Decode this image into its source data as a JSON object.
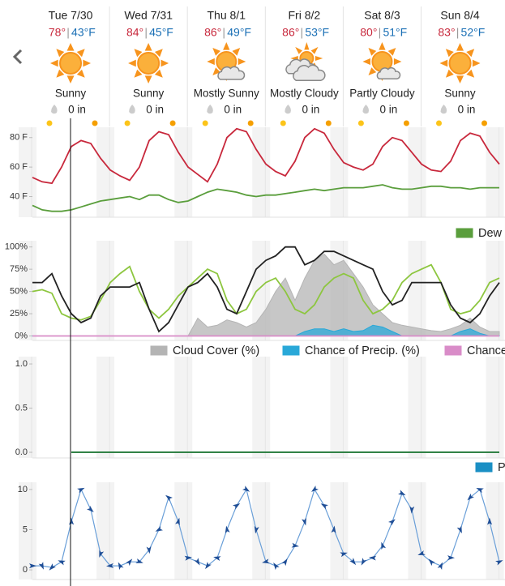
{
  "temp_separator": "|",
  "days": [
    {
      "day": "Tue 7/30",
      "high": "78°",
      "low": "43°F",
      "condition": "Sunny",
      "precip": "0 in",
      "icon": "sunny"
    },
    {
      "day": "Wed 7/31",
      "high": "84°",
      "low": "45°F",
      "condition": "Sunny",
      "precip": "0 in",
      "icon": "sunny"
    },
    {
      "day": "Thu 8/1",
      "high": "86°",
      "low": "49°F",
      "condition": "Mostly Sunny",
      "precip": "0 in",
      "icon": "mostly-sunny"
    },
    {
      "day": "Fri 8/2",
      "high": "86°",
      "low": "53°F",
      "condition": "Mostly Cloudy",
      "precip": "0 in",
      "icon": "mostly-cloudy"
    },
    {
      "day": "Sat 8/3",
      "high": "80°",
      "low": "51°F",
      "condition": "Partly Cloudy",
      "precip": "0 in",
      "icon": "partly-cloudy"
    },
    {
      "day": "Sun 8/4",
      "high": "83°",
      "low": "52°F",
      "condition": "Sunny",
      "precip": "0 in",
      "icon": "sunny"
    }
  ],
  "chart_data": [
    {
      "type": "line",
      "ylim": [
        26,
        87
      ],
      "yticks": [
        {
          "value": 40,
          "label": "40 F"
        },
        {
          "value": 60,
          "label": "60 F"
        },
        {
          "value": 80,
          "label": "80 F"
        }
      ],
      "legend": "bottom-right",
      "series": [
        {
          "color": "#c8283c",
          "style": "line",
          "values": [
            53,
            50,
            49,
            60,
            74,
            78,
            76,
            66,
            58,
            54,
            51,
            60,
            78,
            84,
            82,
            70,
            60,
            55,
            50,
            62,
            80,
            86,
            84,
            72,
            62,
            57,
            54,
            64,
            80,
            86,
            83,
            72,
            63,
            60,
            58,
            62,
            74,
            80,
            78,
            70,
            62,
            58,
            57,
            64,
            78,
            83,
            81,
            70,
            62
          ]
        },
        {
          "name": "Dew",
          "color": "#5a9e3c",
          "style": "line",
          "values": [
            34,
            31,
            30,
            30,
            31,
            33,
            35,
            37,
            38,
            39,
            40,
            38,
            41,
            41,
            38,
            36,
            37,
            40,
            43,
            45,
            44,
            43,
            41,
            40,
            41,
            41,
            42,
            43,
            44,
            45,
            44,
            45,
            46,
            46,
            46,
            47,
            48,
            46,
            45,
            45,
            46,
            47,
            47,
            46,
            46,
            45,
            46,
            46,
            46
          ]
        }
      ]
    },
    {
      "type": "line",
      "ylim": [
        -5,
        107
      ],
      "yticks": [
        {
          "value": 0,
          "label": "0%"
        },
        {
          "value": 25,
          "label": "25%"
        },
        {
          "value": 50,
          "label": "50%"
        },
        {
          "value": 75,
          "label": "75%"
        },
        {
          "value": 100,
          "label": "100%"
        }
      ],
      "legend": "bottom",
      "series": [
        {
          "name": "Cloud Cover (%)",
          "color": "#b4b4b4",
          "style": "area",
          "values": [
            0,
            0,
            0,
            0,
            0,
            0,
            0,
            0,
            0,
            0,
            0,
            0,
            0,
            0,
            0,
            0,
            0,
            20,
            10,
            12,
            18,
            15,
            10,
            15,
            30,
            50,
            65,
            40,
            65,
            85,
            92,
            80,
            85,
            70,
            55,
            35,
            25,
            15,
            12,
            10,
            8,
            6,
            5,
            8,
            12,
            20,
            10,
            5,
            5
          ]
        },
        {
          "name": "Chance of Precip. (%)",
          "color": "#29a8d8",
          "style": "area",
          "values": [
            0,
            0,
            0,
            0,
            0,
            0,
            0,
            0,
            0,
            0,
            0,
            0,
            0,
            0,
            0,
            0,
            0,
            0,
            0,
            0,
            0,
            0,
            0,
            0,
            0,
            0,
            0,
            0,
            5,
            8,
            8,
            5,
            8,
            5,
            6,
            12,
            10,
            5,
            0,
            0,
            0,
            0,
            0,
            0,
            5,
            8,
            3,
            0,
            0
          ]
        },
        {
          "name": "Chance",
          "color": "#d98cc8",
          "style": "line",
          "values": [
            0,
            0,
            0,
            0,
            0,
            0,
            0,
            0,
            0,
            0,
            0,
            0,
            0,
            0,
            0,
            0,
            0,
            0,
            0,
            0,
            0,
            0,
            0,
            0,
            0,
            0,
            0,
            0,
            0,
            0,
            0,
            0,
            0,
            0,
            0,
            0,
            0,
            0,
            0,
            0,
            0,
            0,
            0,
            0,
            0,
            0,
            0,
            0,
            0
          ]
        },
        {
          "color": "#8dc63f",
          "style": "line",
          "values": [
            50,
            52,
            48,
            25,
            20,
            18,
            22,
            40,
            60,
            70,
            78,
            50,
            30,
            20,
            30,
            45,
            55,
            65,
            75,
            70,
            40,
            25,
            30,
            50,
            60,
            65,
            50,
            30,
            25,
            35,
            55,
            65,
            70,
            65,
            40,
            25,
            30,
            40,
            60,
            70,
            75,
            80,
            60,
            30,
            25,
            28,
            40,
            60,
            65
          ]
        },
        {
          "color": "#222222",
          "style": "line",
          "values": [
            60,
            60,
            70,
            45,
            25,
            15,
            20,
            45,
            55,
            55,
            55,
            60,
            30,
            5,
            15,
            35,
            55,
            60,
            70,
            55,
            30,
            25,
            50,
            75,
            85,
            90,
            100,
            100,
            80,
            85,
            95,
            95,
            90,
            85,
            80,
            75,
            50,
            35,
            40,
            60,
            60,
            60,
            60,
            35,
            20,
            15,
            25,
            45,
            60
          ]
        }
      ]
    },
    {
      "type": "line",
      "ylim": [
        -0.064,
        1.083
      ],
      "yticks": [
        {
          "value": 0,
          "label": "0.0"
        },
        0.5,
        {
          "value": 1,
          "label": "1.0"
        }
      ],
      "legend": "bottom-right",
      "series": [
        {
          "name": "P",
          "color": "#1a8fc4",
          "style": "line",
          "values": [
            null,
            null,
            null,
            null,
            0,
            0,
            0,
            0,
            0,
            0,
            0,
            0,
            0,
            0,
            0,
            0,
            0,
            0,
            0,
            0,
            0,
            0,
            0,
            0,
            0,
            0,
            0,
            0,
            0,
            0,
            0,
            0,
            0,
            0,
            0,
            0,
            0,
            0,
            0,
            0,
            0,
            0,
            0,
            0,
            0,
            0,
            0,
            0,
            0
          ]
        },
        {
          "color": "#2e7d32",
          "style": "line",
          "values": [
            null,
            null,
            null,
            null,
            0,
            0,
            0,
            0,
            0,
            0,
            0,
            0,
            0,
            0,
            0,
            0,
            0,
            0,
            0,
            0,
            0,
            0,
            0,
            0,
            0,
            0,
            0,
            0,
            0,
            0,
            0,
            0,
            0,
            0,
            0,
            0,
            0,
            0,
            0,
            0,
            0,
            0,
            0,
            0,
            0,
            0,
            0,
            0,
            0
          ]
        }
      ]
    },
    {
      "type": "line",
      "ylim": [
        -1.2,
        10.9
      ],
      "yticks": [
        0,
        5,
        10
      ],
      "series": [
        {
          "color": "#6a9fd8",
          "style": "line",
          "markers": "arrow",
          "values": [
            0.5,
            0.5,
            0.3,
            1,
            6,
            10,
            7.5,
            2,
            0.5,
            0.5,
            1,
            1,
            2.5,
            5,
            9,
            6,
            1.5,
            1,
            0.5,
            1.5,
            5,
            8,
            10,
            5,
            1,
            0.5,
            1,
            3,
            6,
            10,
            8,
            5,
            2,
            1,
            1,
            1.5,
            3,
            6,
            9.5,
            7.5,
            2,
            1,
            0.5,
            1.5,
            5,
            9,
            10,
            6,
            1
          ]
        }
      ]
    }
  ]
}
